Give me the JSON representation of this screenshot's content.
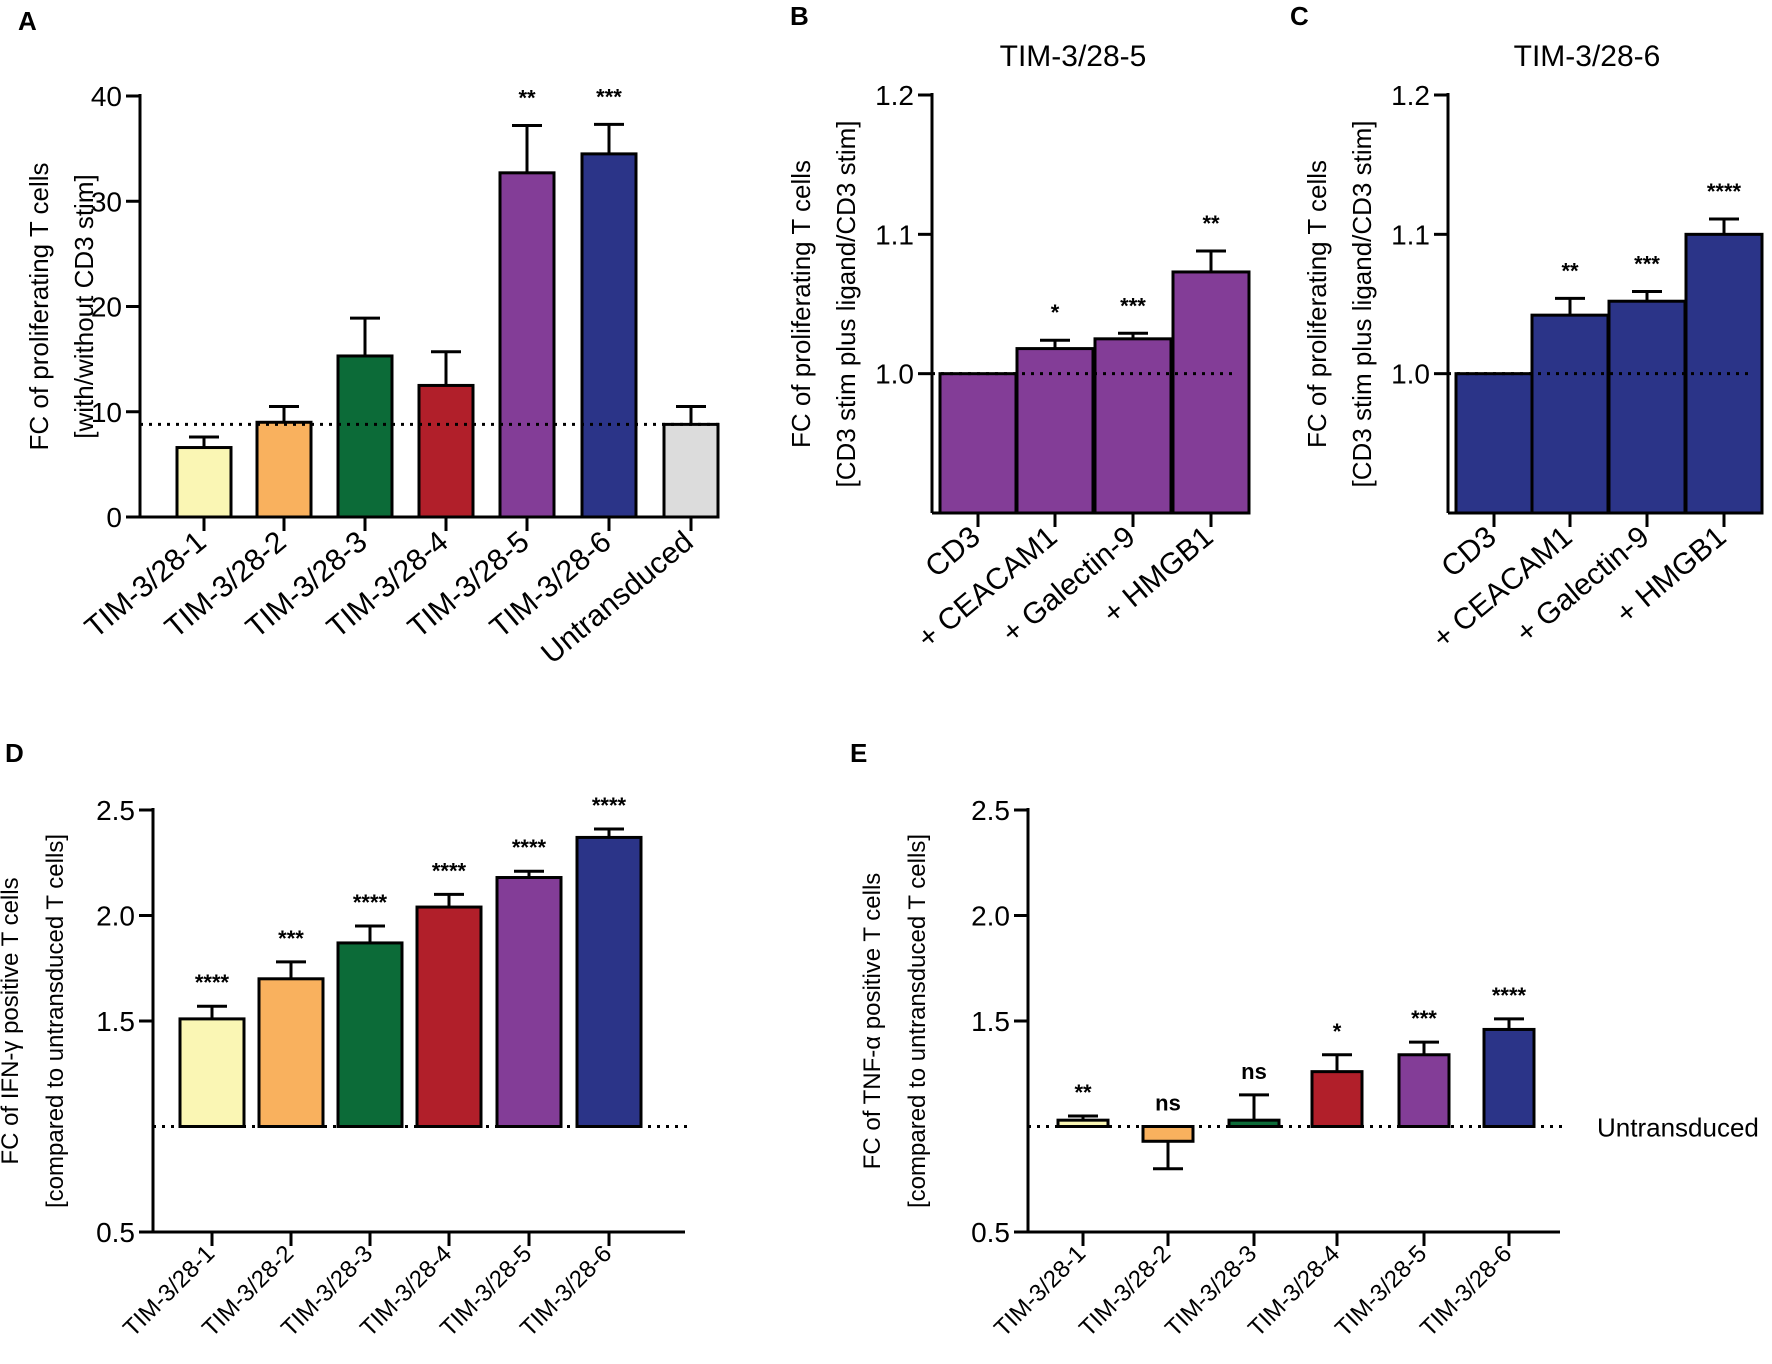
{
  "chart_data": [
    {
      "panel": "A",
      "type": "bar",
      "title": "",
      "ylabel_lines": [
        "FC of proliferating T cells",
        "[with/without CD3 stim]"
      ],
      "xlabel": "",
      "ylim": [
        0,
        40
      ],
      "yticks": [
        0,
        10,
        20,
        30,
        40
      ],
      "ytick_labels": [
        "0",
        "10",
        "20",
        "30",
        "40"
      ],
      "reference_line": 8.8,
      "categories": [
        "TIM-3/28-1",
        "TIM-3/28-2",
        "TIM-3/28-3",
        "TIM-3/28-4",
        "TIM-3/28-5",
        "TIM-3/28-6",
        "Untransduced"
      ],
      "values": [
        6.6,
        9.0,
        15.3,
        12.5,
        32.7,
        34.5,
        8.8
      ],
      "errors": [
        1.0,
        1.5,
        3.6,
        3.2,
        4.5,
        2.8,
        1.7
      ],
      "significance": [
        "",
        "",
        "",
        "",
        "**",
        "***",
        ""
      ],
      "colors": [
        "#faf6b4",
        "#f9b15e",
        "#0c6b38",
        "#b11f2a",
        "#833d97",
        "#2b3488",
        "#dcdcdc"
      ]
    },
    {
      "panel": "B",
      "type": "bar",
      "title": "TIM-3/28-5",
      "ylabel_lines": [
        "FC of proliferating T cells",
        "[CD3 stim plus ligand/CD3 stim]"
      ],
      "xlabel": "",
      "ylim": [
        0.9,
        1.2
      ],
      "yticks": [
        1.0,
        1.1,
        1.2
      ],
      "ytick_labels": [
        "1.0",
        "1.1",
        "1.2"
      ],
      "reference_line": 1.0,
      "categories": [
        "CD3",
        "+ CEACAM1",
        "+ Galectin-9",
        "+ HMGB1"
      ],
      "values": [
        1.0,
        1.018,
        1.025,
        1.073
      ],
      "errors": [
        0,
        0.006,
        0.004,
        0.015
      ],
      "significance": [
        "",
        "*",
        "***",
        "**"
      ],
      "colors": [
        "#833d97",
        "#833d97",
        "#833d97",
        "#833d97"
      ]
    },
    {
      "panel": "C",
      "type": "bar",
      "title": "TIM-3/28-6",
      "ylabel_lines": [
        "FC of proliferating T cells",
        "[CD3 stim plus ligand/CD3 stim]"
      ],
      "xlabel": "",
      "ylim": [
        0.9,
        1.2
      ],
      "yticks": [
        1.0,
        1.1,
        1.2
      ],
      "ytick_labels": [
        "1.0",
        "1.1",
        "1.2"
      ],
      "reference_line": 1.0,
      "categories": [
        "CD3",
        "+ CEACAM1",
        "+ Galectin-9",
        "+ HMGB1"
      ],
      "values": [
        1.0,
        1.042,
        1.052,
        1.1
      ],
      "errors": [
        0,
        0.012,
        0.007,
        0.011
      ],
      "significance": [
        "",
        "**",
        "***",
        "****"
      ],
      "colors": [
        "#2b3488",
        "#2b3488",
        "#2b3488",
        "#2b3488"
      ]
    },
    {
      "panel": "D",
      "type": "bar",
      "title": "",
      "ylabel_lines": [
        "FC of IFN-γ positive T cells",
        "[compared to untransduced T cells]"
      ],
      "xlabel": "",
      "ylim": [
        0.5,
        2.5
      ],
      "yticks": [
        0.5,
        1.5,
        2.0,
        2.5
      ],
      "ytick_labels": [
        "0.5",
        "1.5",
        "2.0",
        "2.5"
      ],
      "baseline": 1.0,
      "reference_line": 1.0,
      "categories": [
        "TIM-3/28-1",
        "TIM-3/28-2",
        "TIM-3/28-3",
        "TIM-3/28-4",
        "TIM-3/28-5",
        "TIM-3/28-6"
      ],
      "values": [
        1.51,
        1.7,
        1.87,
        2.04,
        2.18,
        2.37
      ],
      "errors": [
        0.06,
        0.08,
        0.08,
        0.06,
        0.03,
        0.04
      ],
      "significance": [
        "****",
        "***",
        "****",
        "****",
        "****",
        "****"
      ],
      "colors": [
        "#faf6b4",
        "#f9b15e",
        "#0c6b38",
        "#b11f2a",
        "#833d97",
        "#2b3488"
      ]
    },
    {
      "panel": "E",
      "type": "bar",
      "title": "",
      "ylabel_lines": [
        "FC of TNF-α positive T cells",
        "[compared to untransduced T cells]"
      ],
      "xlabel": "",
      "ylim": [
        0.5,
        2.5
      ],
      "yticks": [
        0.5,
        1.5,
        2.0,
        2.5
      ],
      "ytick_labels": [
        "0.5",
        "1.5",
        "2.0",
        "2.5"
      ],
      "baseline": 1.0,
      "reference_line": 1.0,
      "reference_label": "Untransduced",
      "categories": [
        "TIM-3/28-1",
        "TIM-3/28-2",
        "TIM-3/28-3",
        "TIM-3/28-4",
        "TIM-3/28-5",
        "TIM-3/28-6"
      ],
      "values": [
        1.03,
        0.93,
        1.03,
        1.26,
        1.34,
        1.46
      ],
      "errors": [
        0.02,
        0.13,
        0.12,
        0.08,
        0.06,
        0.05
      ],
      "significance": [
        "**",
        "ns",
        "ns",
        "*",
        "***",
        "****"
      ],
      "colors": [
        "#faf6b4",
        "#f9b15e",
        "#0c6b38",
        "#b11f2a",
        "#833d97",
        "#2b3488"
      ]
    }
  ]
}
